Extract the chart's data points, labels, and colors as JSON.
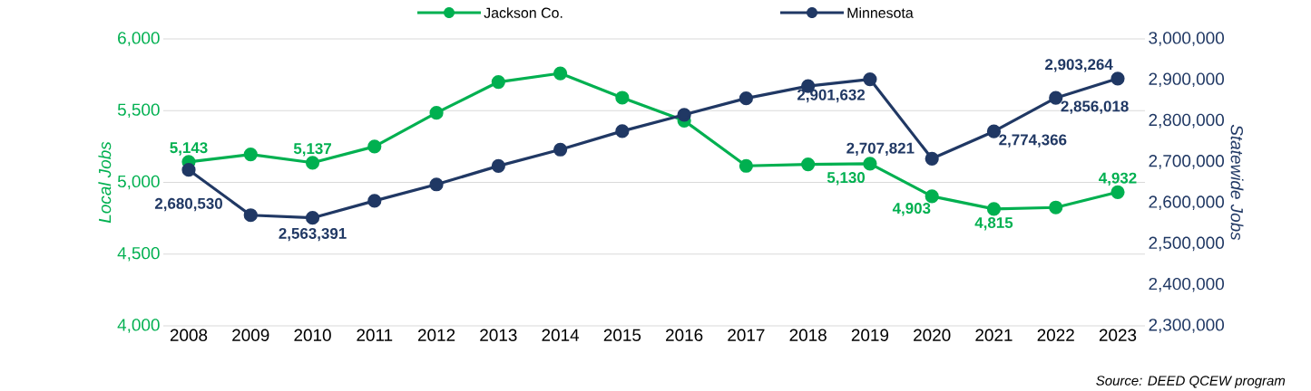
{
  "chart_data": {
    "type": "line",
    "ylabel": "Local Jobs",
    "y2label": "Statewide Jobs",
    "categories": [
      "2008",
      "2009",
      "2010",
      "2011",
      "2012",
      "2013",
      "2014",
      "2015",
      "2016",
      "2017",
      "2018",
      "2019",
      "2020",
      "2021",
      "2022",
      "2023"
    ],
    "series": [
      {
        "name": "Jackson Co.",
        "color": "#00b050",
        "values": [
          5143,
          5195,
          5137,
          5250,
          5485,
          5700,
          5760,
          5590,
          5430,
          5115,
          5126,
          5130,
          4903,
          4815,
          4825,
          4932
        ],
        "value_labels": [
          "5,143",
          null,
          "5,137",
          null,
          null,
          null,
          null,
          null,
          null,
          null,
          null,
          "5,130",
          "4,903",
          "4,815",
          null,
          "4,932"
        ]
      },
      {
        "name": "Minnesota",
        "color": "#203864",
        "axis": "y2",
        "values": [
          2680530,
          2570000,
          2563391,
          2605000,
          2645000,
          2690000,
          2730000,
          2775000,
          2815000,
          2855000,
          2885000,
          2901632,
          2707821,
          2774366,
          2856018,
          2903264
        ],
        "value_labels": [
          "2,680,530",
          null,
          "2,563,391",
          null,
          null,
          null,
          null,
          null,
          null,
          null,
          null,
          "2,901,632",
          "2,707,821",
          "2,774,366",
          "2,856,018",
          "2,903,264"
        ]
      }
    ],
    "ylim": [
      4000,
      6000
    ],
    "yticks": [
      {
        "value": 4000,
        "label": "4,000"
      },
      {
        "value": 4500,
        "label": "4,500"
      },
      {
        "value": 5000,
        "label": "5,000"
      },
      {
        "value": 5500,
        "label": "5,500"
      },
      {
        "value": 6000,
        "label": "6,000"
      }
    ],
    "y2lim": [
      2300000,
      3000000
    ],
    "y2ticks": [
      {
        "value": 2300000,
        "label": "2,300,000"
      },
      {
        "value": 2400000,
        "label": "2,400,000"
      },
      {
        "value": 2500000,
        "label": "2,500,000"
      },
      {
        "value": 2600000,
        "label": "2,600,000"
      },
      {
        "value": 2700000,
        "label": "2,700,000"
      },
      {
        "value": 2800000,
        "label": "2,800,000"
      },
      {
        "value": 2900000,
        "label": "2,900,000"
      },
      {
        "value": 3000000,
        "label": "3,000,000"
      }
    ],
    "grid": "y",
    "legend": "top",
    "marker": "circle",
    "line_style": "solid",
    "annotations": [
      "Source: DEED QCEW program"
    ]
  }
}
